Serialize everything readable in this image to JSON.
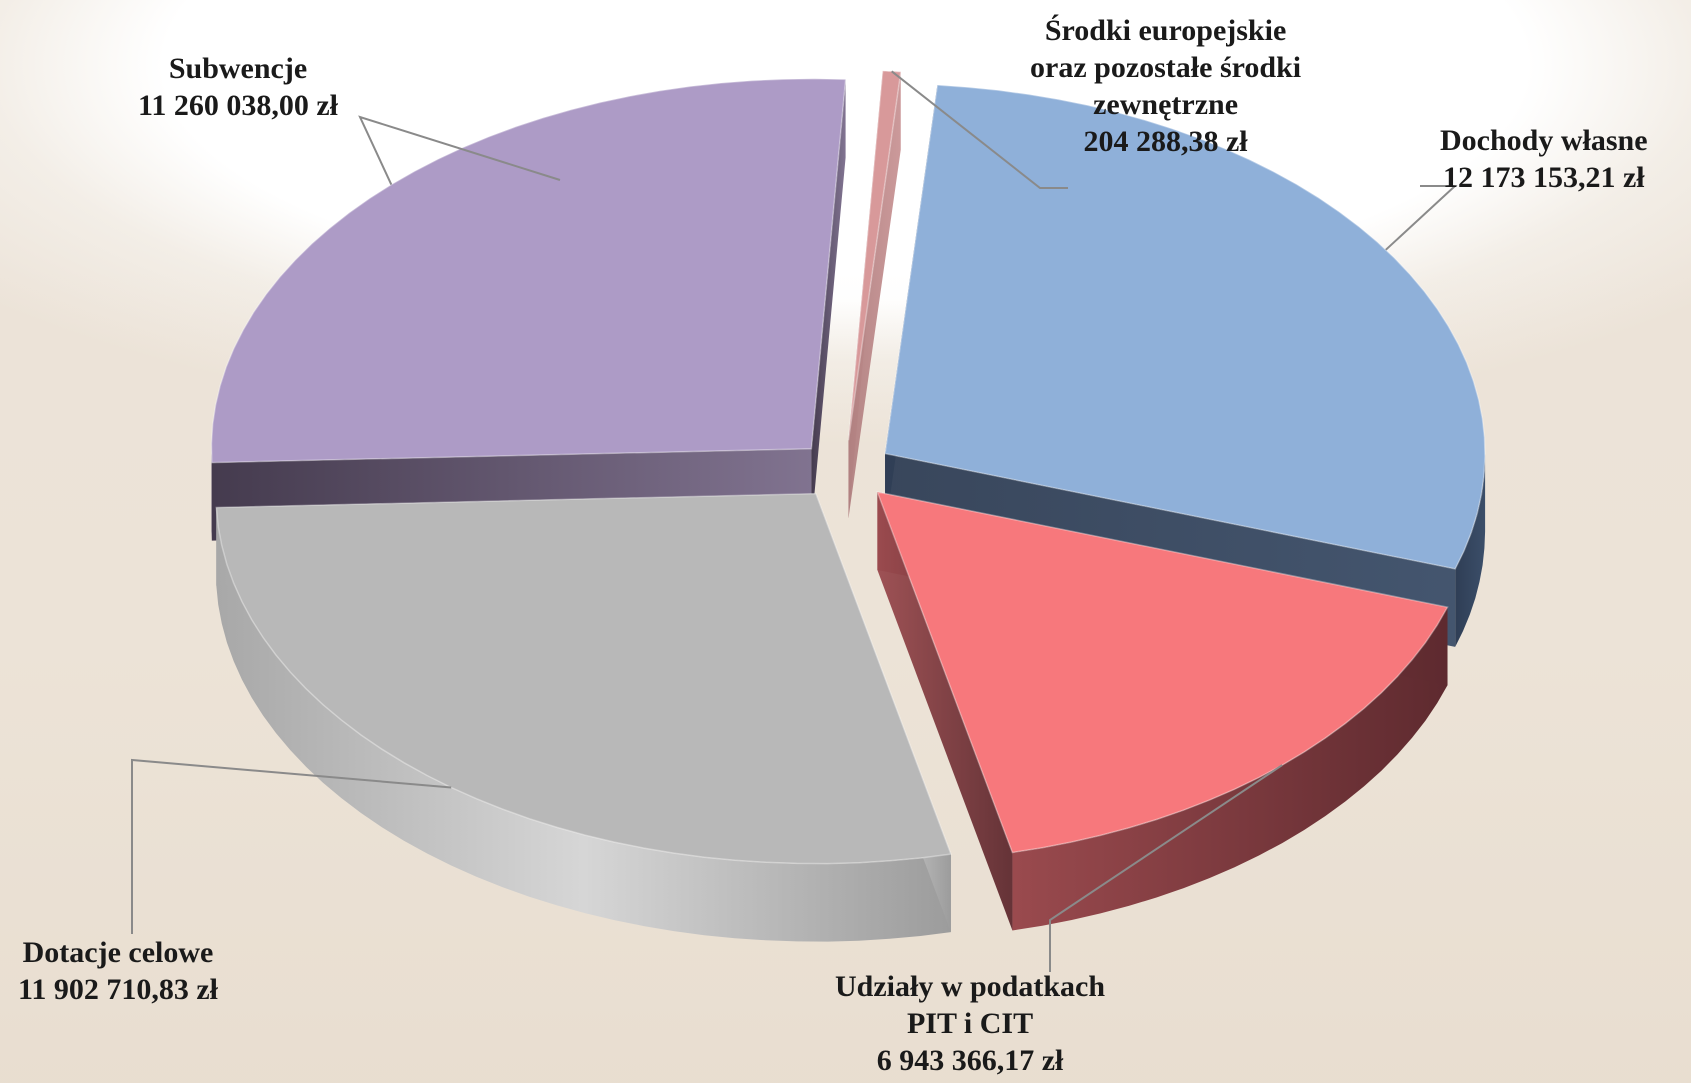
{
  "chart_data": {
    "type": "pie",
    "title": "",
    "categories": [
      "Dochody własne",
      "Udziały w podatkach PIT i CIT",
      "Dotacje celowe",
      "Subwencje",
      "Środki europejskie oraz pozostałe środki zewnętrzne"
    ],
    "values": [
      12173153.21,
      6943366.17,
      11902710.83,
      11260038.0,
      204288.38
    ],
    "value_labels": [
      "12 173 153,21 zł",
      "6 943 366,17 zł",
      "11 902 710,83 zł",
      "11 260 038,00 zł",
      "204 288,38 zł"
    ],
    "colors": [
      "#8fb0d9",
      "#f7787c",
      "#b8b8b8",
      "#ad9bc6",
      "#d8999a"
    ],
    "exploded": true,
    "style": "3d",
    "legend": "none"
  },
  "labels": {
    "dochody": {
      "line1": "Dochody własne",
      "value": "12 173 153,21 zł"
    },
    "udzialy": {
      "line1": "Udziały w podatkach",
      "line2": "PIT i CIT",
      "value": "6 943 366,17 zł"
    },
    "dotacje": {
      "line1": "Dotacje celowe",
      "value": "11 902 710,83 zł"
    },
    "subwencje": {
      "line1": "Subwencje",
      "value": "11 260 038,00 zł"
    },
    "srodki": {
      "line1": "Środki europejskie",
      "line2": "oraz pozostałe środki",
      "line3": "zewnętrzne",
      "value": "204 288,38 zł"
    }
  }
}
